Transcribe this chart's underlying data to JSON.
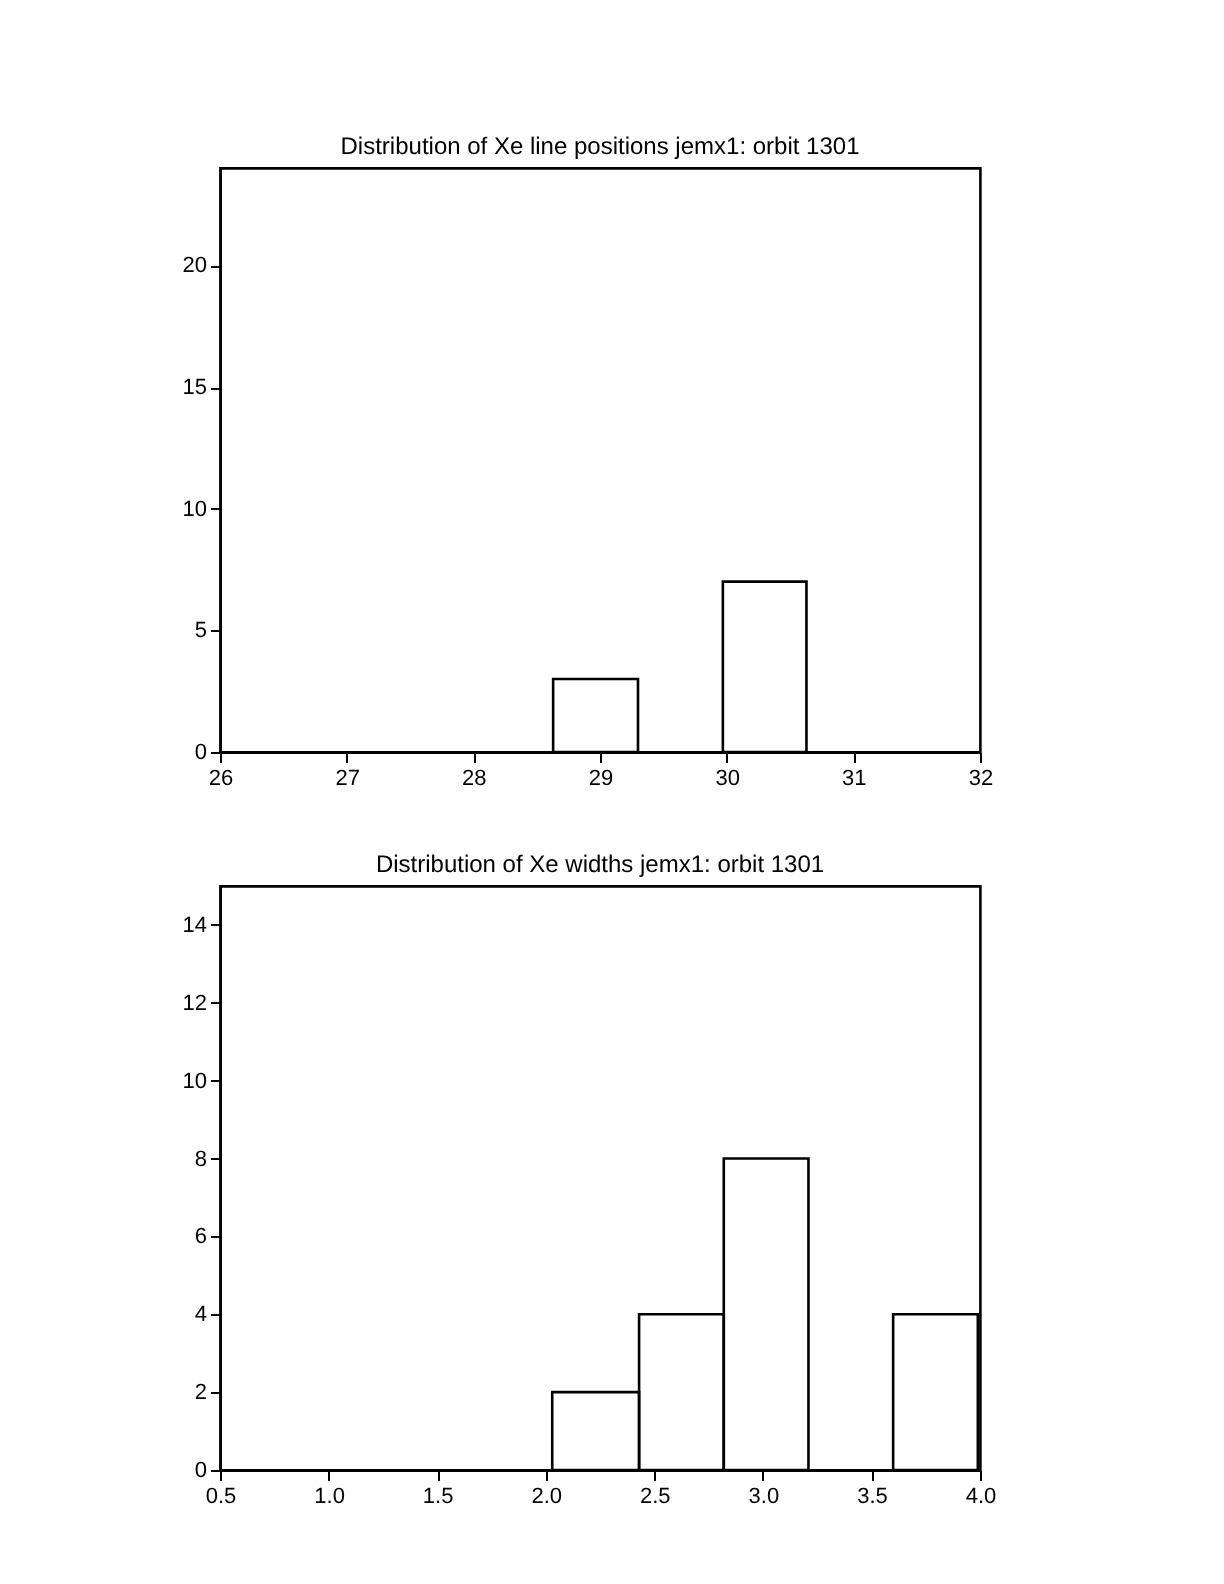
{
  "chart_data": [
    {
      "type": "histogram",
      "title": "Distribution of Xe line positions jemx1: orbit 1301",
      "bins": [
        28.63,
        29.3,
        29.97,
        30.63
      ],
      "values": [
        3,
        null,
        7
      ],
      "color": "#000000",
      "xlim": [
        26,
        32
      ],
      "xticks": [
        26,
        27,
        28,
        29,
        30,
        31,
        32
      ],
      "ylim": [
        0,
        24
      ],
      "yticks": [
        0,
        5,
        10,
        15,
        20
      ],
      "grid": false
    },
    {
      "type": "histogram",
      "title": "Distribution of Xe widths jemx1: orbit 1301",
      "bins": [
        2.03,
        2.43,
        2.82,
        3.21,
        3.6,
        3.99
      ],
      "values": [
        2,
        4,
        8,
        null,
        4
      ],
      "color": "#000000",
      "xlim": [
        0.5,
        4.0
      ],
      "xticks": [
        {
          "value": 0.5,
          "label": "0.5"
        },
        {
          "value": 1,
          "label": "1.0"
        },
        {
          "value": 1.5,
          "label": "1.5"
        },
        {
          "value": 2,
          "label": "2.0"
        },
        {
          "value": 2.5,
          "label": "2.5"
        },
        {
          "value": 3,
          "label": "3.0"
        },
        {
          "value": 3.5,
          "label": "3.5"
        },
        {
          "value": 4,
          "label": "4.0"
        }
      ],
      "ylim": [
        0,
        15
      ],
      "yticks": [
        0,
        2,
        4,
        6,
        8,
        10,
        12,
        14
      ],
      "grid": false
    }
  ]
}
